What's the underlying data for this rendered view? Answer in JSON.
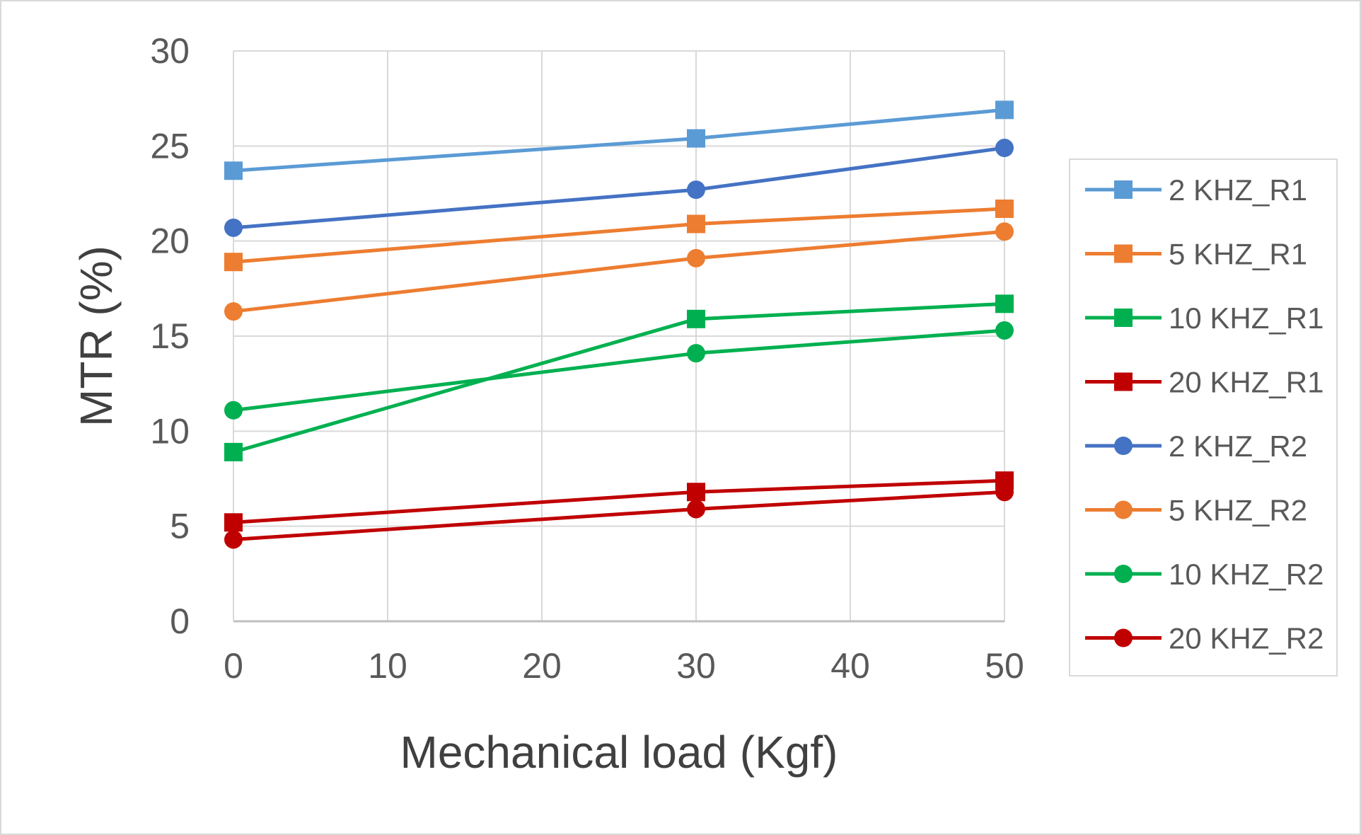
{
  "chart_data": {
    "type": "line",
    "title": "",
    "xlabel": "Mechanical load (Kgf)",
    "ylabel": "MTR (%)",
    "x": [
      0,
      30,
      50
    ],
    "xlim": [
      0,
      50
    ],
    "ylim": [
      0,
      30
    ],
    "xticks": [
      0,
      10,
      20,
      30,
      40,
      50
    ],
    "yticks": [
      0,
      5,
      10,
      15,
      20,
      25,
      30
    ],
    "grid": true,
    "legend_position": "right",
    "series": [
      {
        "name": "2 KHZ_R1",
        "marker": "square",
        "color": "#5b9bd5",
        "values": [
          23.7,
          25.4,
          26.9
        ]
      },
      {
        "name": "5 KHZ_R1",
        "marker": "square",
        "color": "#ed7d31",
        "values": [
          18.9,
          20.9,
          21.7
        ]
      },
      {
        "name": "10 KHZ_R1",
        "marker": "square",
        "color": "#00b050",
        "values": [
          8.9,
          15.9,
          16.7
        ]
      },
      {
        "name": "20 KHZ_R1",
        "marker": "square",
        "color": "#c00000",
        "values": [
          5.2,
          6.8,
          7.4
        ]
      },
      {
        "name": "2 KHZ_R2",
        "marker": "circle",
        "color": "#4472c4",
        "values": [
          20.7,
          22.7,
          24.9
        ]
      },
      {
        "name": "5 KHZ_R2",
        "marker": "circle",
        "color": "#ed7d31",
        "values": [
          16.3,
          19.1,
          20.5
        ]
      },
      {
        "name": "10 KHZ_R2",
        "marker": "circle",
        "color": "#00b050",
        "values": [
          11.1,
          14.1,
          15.3
        ]
      },
      {
        "name": "20 KHZ_R2",
        "marker": "circle",
        "color": "#c00000",
        "values": [
          4.3,
          5.9,
          6.8
        ]
      }
    ]
  }
}
